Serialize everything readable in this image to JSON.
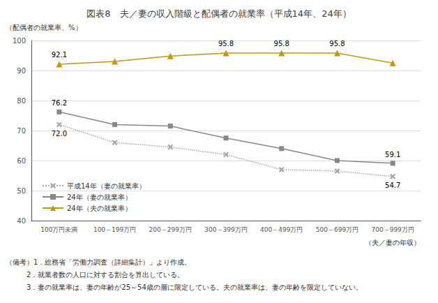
{
  "chart_data": {
    "type": "line",
    "title": "図表8　夫／妻の収入階級と配偶者の就業率（平成14年、24年）",
    "ylabel": "（配偶者の就業率、%）",
    "xlabel": "（夫／妻の年収）",
    "categories": [
      "100万円未満",
      "100～199万円",
      "200～299万円",
      "300～399万円",
      "400～499万円",
      "500～699万円",
      "700～999万円"
    ],
    "series": [
      {
        "name": "平成14年（妻の就業率）",
        "color": "#aaaaaa",
        "marker": "x",
        "line_style": "dotted",
        "values": [
          72.0,
          66.0,
          64.5,
          62.0,
          57.0,
          56.5,
          54.7
        ],
        "value_labels": [
          "72.0",
          null,
          null,
          null,
          null,
          null,
          "54.7"
        ]
      },
      {
        "name": "24年（妻の就業率）",
        "color": "#888888",
        "marker": "square",
        "line_style": "solid",
        "values": [
          76.2,
          72.0,
          71.5,
          67.5,
          64.0,
          60.0,
          59.1
        ],
        "value_labels": [
          "76.2",
          null,
          null,
          null,
          null,
          null,
          "59.1"
        ]
      },
      {
        "name": "24年（夫の就業率）",
        "color": "#c8960c",
        "marker": "triangle",
        "line_style": "solid",
        "values": [
          92.1,
          93.0,
          94.8,
          95.8,
          95.8,
          95.8,
          92.5
        ],
        "value_labels": [
          "92.1",
          null,
          null,
          "95.8",
          "95.8",
          "95.8",
          null
        ]
      }
    ],
    "ylim": [
      40,
      100
    ],
    "yticks": [
      40,
      50,
      60,
      70,
      80,
      90,
      100
    ],
    "grid": true,
    "legend": "lower left",
    "annotations": [
      "（備考）1．総務省「労働力調査（詳細集計）」より作成。",
      "　　　2．就業者数の人口に対する割合を算出している。",
      "　　　3．妻の就業率は、妻の年齢が25～54歳の層に限定している。夫の就業率は、妻の年齢を限定していない。"
    ]
  }
}
